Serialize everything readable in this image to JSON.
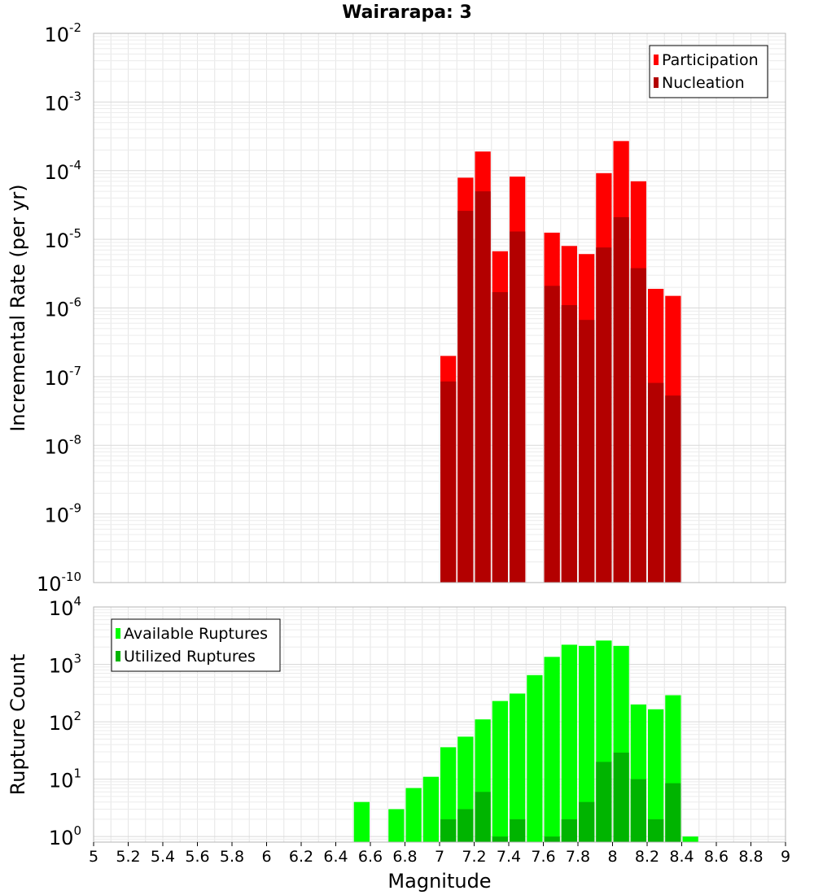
{
  "title": "Wairarapa: 3",
  "colors": {
    "participation": "#ff0000",
    "nucleation": "#b30000",
    "available": "#00ff00",
    "utilized": "#00b400"
  },
  "chart_data": [
    {
      "type": "bar",
      "panel": "top",
      "ylabel": "Incremental Rate (per yr)",
      "yscale": "log",
      "ylim": [
        1e-10,
        0.01
      ],
      "xlim": [
        5,
        9
      ],
      "yticks": [
        "10^-10",
        "10^-9",
        "10^-8",
        "10^-7",
        "10^-6",
        "10^-5",
        "10^-4",
        "10^-3",
        "10^-2"
      ],
      "legend_position": "top-right",
      "grid": true,
      "series": [
        {
          "name": "Participation",
          "color": "#ff0000",
          "x": [
            7.05,
            7.15,
            7.25,
            7.35,
            7.45,
            7.65,
            7.75,
            7.85,
            7.95,
            8.05,
            8.15,
            8.25,
            8.35
          ],
          "values": [
            2e-07,
            7.9e-05,
            0.00019,
            6.7e-06,
            8.2e-05,
            1.25e-05,
            8e-06,
            6.1e-06,
            9.2e-05,
            0.00027,
            7e-05,
            1.9e-06,
            1.5e-06
          ]
        },
        {
          "name": "Nucleation",
          "color": "#b30000",
          "x": [
            7.05,
            7.15,
            7.25,
            7.35,
            7.45,
            7.65,
            7.75,
            7.85,
            7.95,
            8.05,
            8.15,
            8.25,
            8.35
          ],
          "values": [
            8.5e-08,
            2.6e-05,
            5e-05,
            1.7e-06,
            1.3e-05,
            2.1e-06,
            1.1e-06,
            6.7e-07,
            7.6e-06,
            2.1e-05,
            3.8e-06,
            8.1e-08,
            5.3e-08
          ]
        }
      ]
    },
    {
      "type": "bar",
      "panel": "bottom",
      "ylabel": "Rupture Count",
      "xlabel": "Magnitude",
      "yscale": "log",
      "ylim": [
        0.8,
        10000
      ],
      "xlim": [
        5,
        9
      ],
      "yticks": [
        "10^0",
        "10^1",
        "10^2",
        "10^3",
        "10^4"
      ],
      "xticks": [
        "5",
        "5.2",
        "5.4",
        "5.6",
        "5.8",
        "6",
        "6.2",
        "6.4",
        "6.6",
        "6.8",
        "7",
        "7.2",
        "7.4",
        "7.6",
        "7.8",
        "8",
        "8.2",
        "8.4",
        "8.6",
        "8.8",
        "9"
      ],
      "legend_position": "top-left",
      "grid": true,
      "series": [
        {
          "name": "Available Ruptures",
          "color": "#00ff00",
          "x": [
            6.55,
            6.75,
            6.85,
            6.95,
            7.05,
            7.15,
            7.25,
            7.35,
            7.45,
            7.55,
            7.65,
            7.75,
            7.85,
            7.95,
            8.05,
            8.15,
            8.25,
            8.35,
            8.45
          ],
          "values": [
            4,
            3,
            7,
            11,
            36,
            55,
            110,
            230,
            310,
            650,
            1350,
            2200,
            2100,
            2600,
            2100,
            200,
            165,
            290,
            1
          ]
        },
        {
          "name": "Utilized Ruptures",
          "color": "#00b400",
          "x": [
            7.05,
            7.15,
            7.25,
            7.35,
            7.45,
            7.65,
            7.75,
            7.85,
            7.95,
            8.05,
            8.15,
            8.25,
            8.35
          ],
          "values": [
            2,
            3,
            6,
            1,
            2,
            1,
            2,
            4,
            20,
            29,
            10,
            2,
            8.5
          ]
        }
      ]
    }
  ]
}
